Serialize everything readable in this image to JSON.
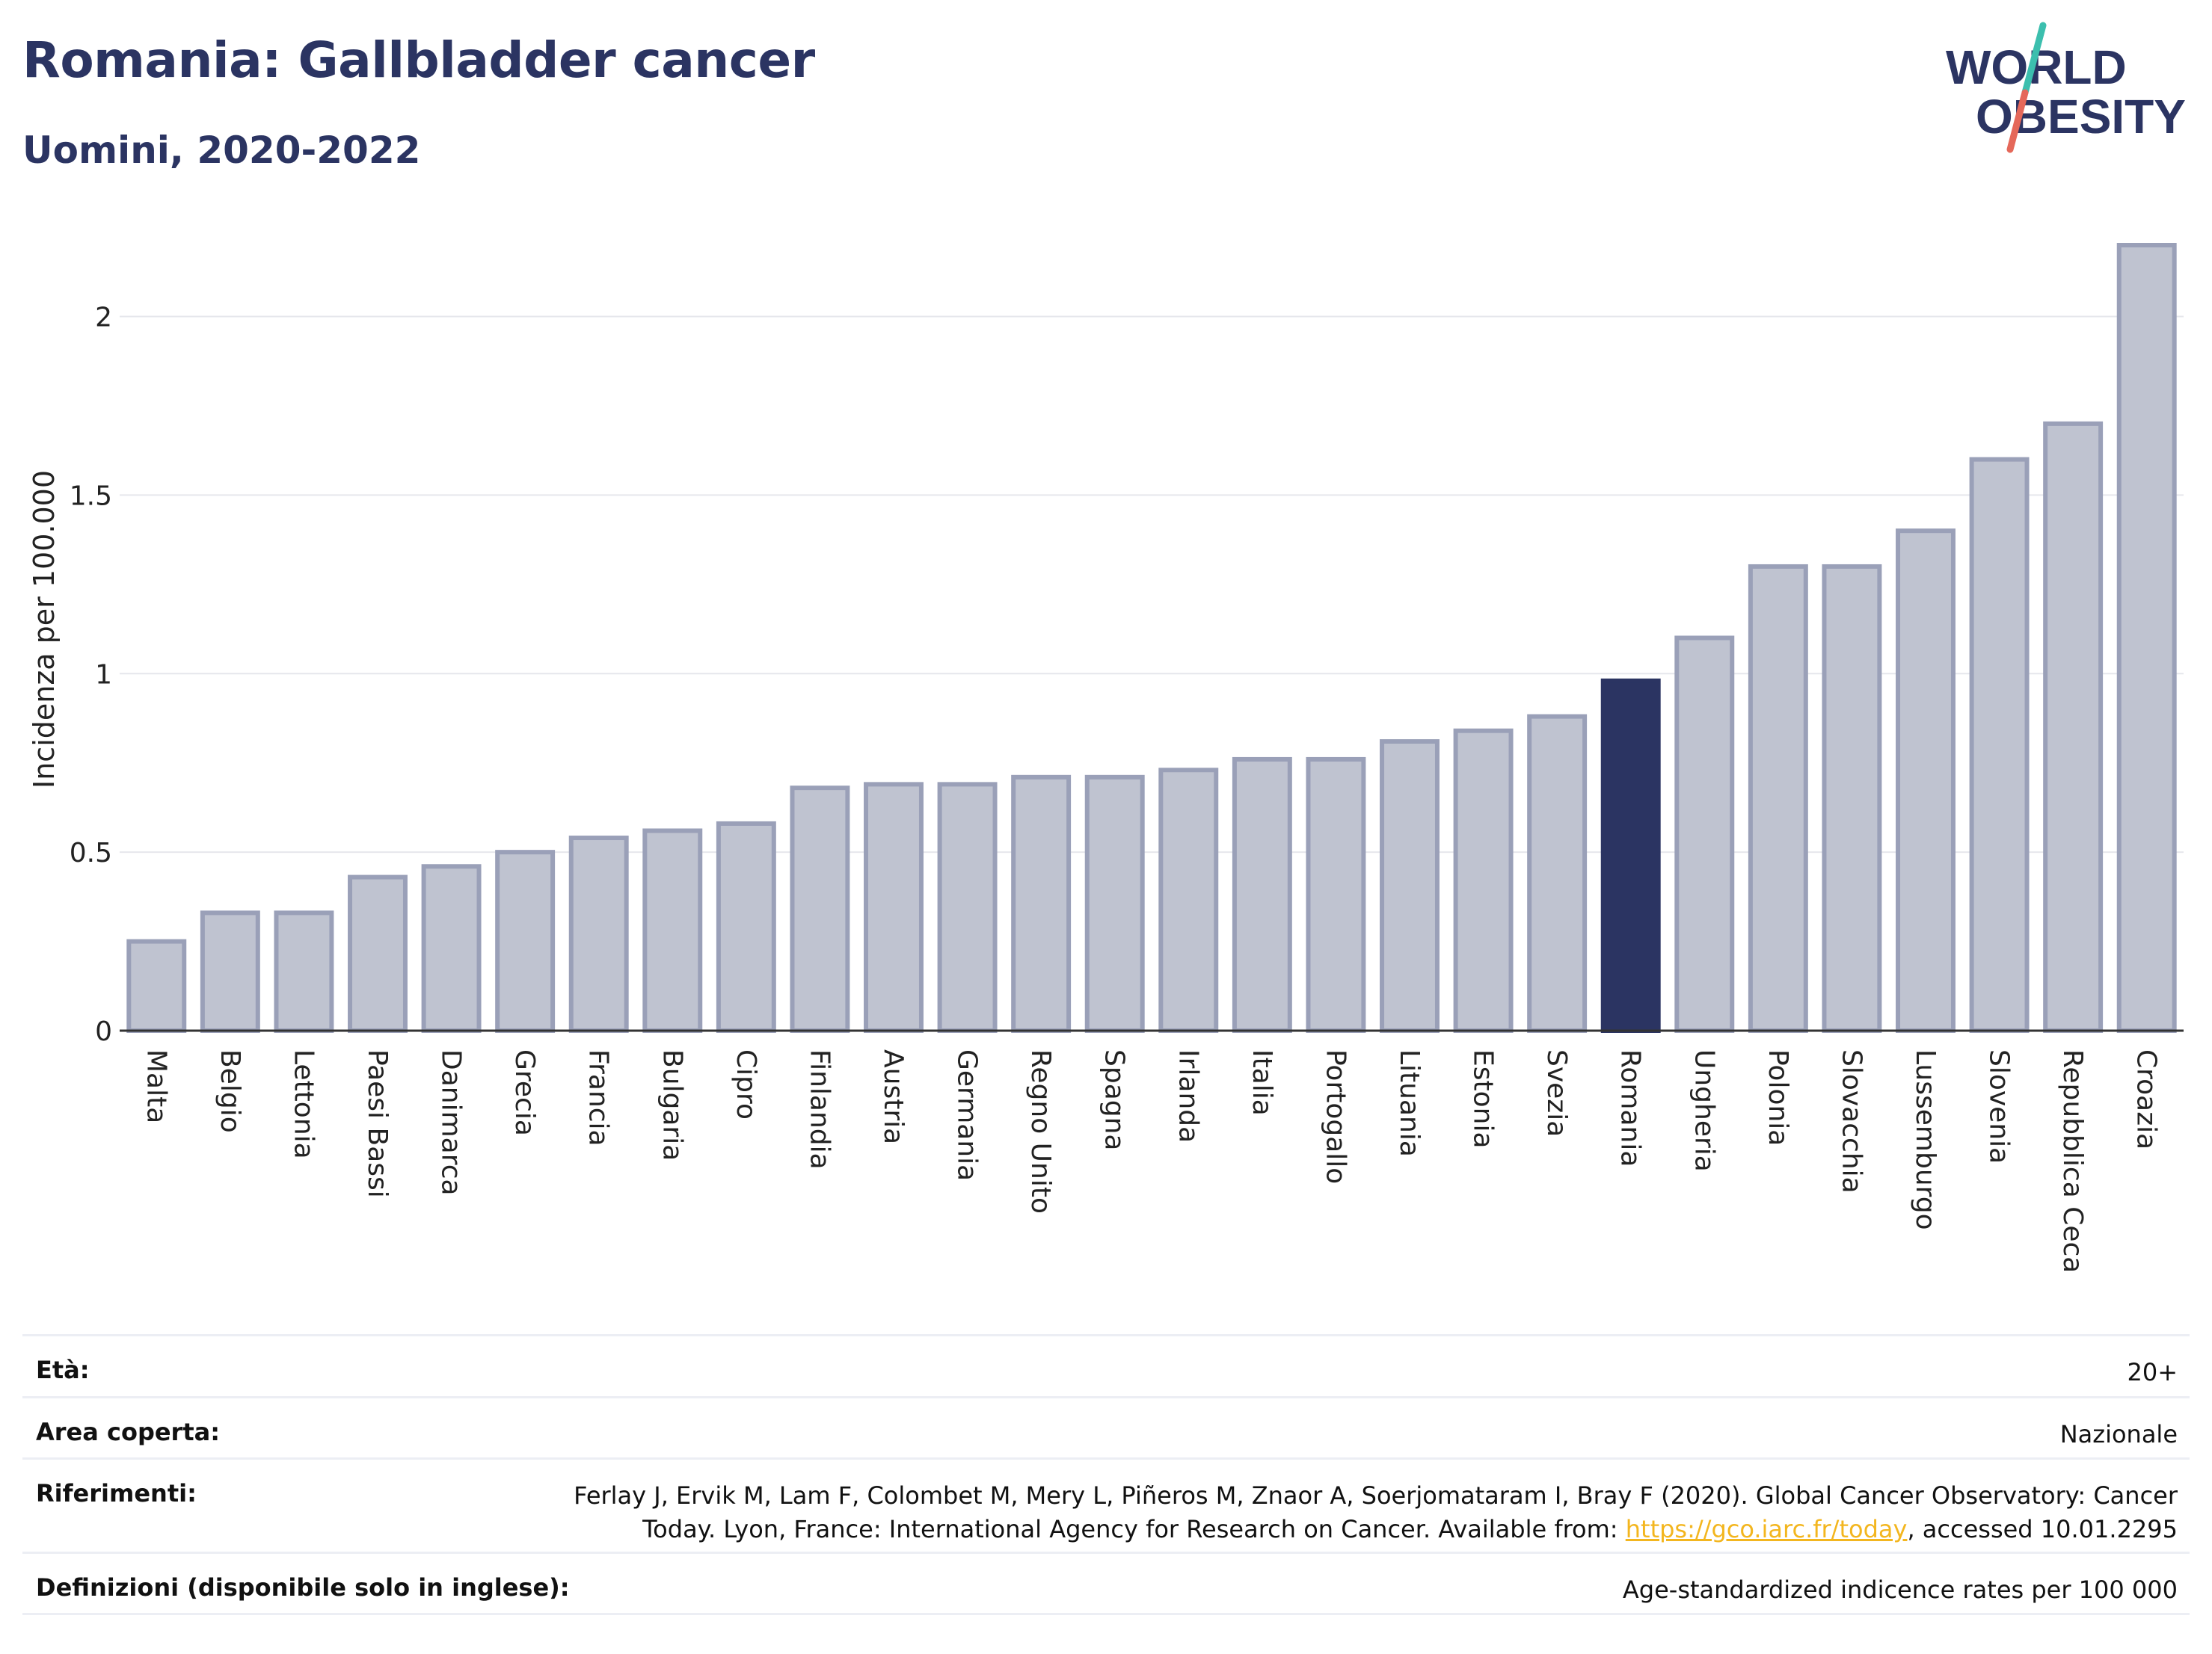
{
  "header": {
    "title": "Romania: Gallbladder cancer",
    "subtitle": "Uomini, 2020-2022"
  },
  "logo": {
    "line1": "WORLD",
    "line2": "OBESITY",
    "accent_colors": [
      "#e5685a",
      "#3cbfae"
    ]
  },
  "chart_data": {
    "type": "bar",
    "ylabel": "Incidenza per 100.000",
    "xlabel": "",
    "ylim": [
      0,
      2.2
    ],
    "yticks": [
      0,
      0.5,
      1,
      1.5,
      2
    ],
    "ytick_labels": [
      "0",
      "0.5",
      "1",
      "1.5",
      "2"
    ],
    "grid": true,
    "highlight": "Romania",
    "colors": {
      "default": "#bfc3d0",
      "default_border": "#9aa0b8",
      "highlight": "#2b3462"
    },
    "categories": [
      "Malta",
      "Belgio",
      "Lettonia",
      "Paesi Bassi",
      "Danimarca",
      "Grecia",
      "Francia",
      "Bulgaria",
      "Cipro",
      "Finlandia",
      "Austria",
      "Germania",
      "Regno Unito",
      "Spagna",
      "Irlanda",
      "Italia",
      "Portogallo",
      "Lituania",
      "Estonia",
      "Svezia",
      "Romania",
      "Ungheria",
      "Polonia",
      "Slovacchia",
      "Lussemburgo",
      "Slovenia",
      "Repubblica Ceca",
      "Croazia"
    ],
    "values": [
      0.25,
      0.33,
      0.33,
      0.43,
      0.46,
      0.5,
      0.54,
      0.56,
      0.58,
      0.68,
      0.69,
      0.69,
      0.71,
      0.71,
      0.73,
      0.76,
      0.76,
      0.81,
      0.84,
      0.88,
      0.98,
      1.1,
      1.3,
      1.3,
      1.4,
      1.6,
      1.7,
      2.2
    ]
  },
  "info": {
    "age_label": "Età:",
    "age_value": "20+",
    "area_label": "Area coperta:",
    "area_value": "Nazionale",
    "ref_label": "Riferimenti:",
    "ref_line1": "Ferlay J, Ervik M, Lam F, Colombet M, Mery L, Piñeros M, Znaor A, Soerjomataram I, Bray F (2020). Global Cancer Observatory: Cancer",
    "ref_line2_pre": "Today. Lyon, France: International Agency for Research on Cancer. Available from: ",
    "ref_link": "https://gco.iarc.fr/today",
    "ref_line2_post": ", accessed 10.01.2295",
    "def_label": "Definizioni (disponibile solo in inglese):",
    "def_value": "Age-standardized indicence rates per 100 000"
  }
}
